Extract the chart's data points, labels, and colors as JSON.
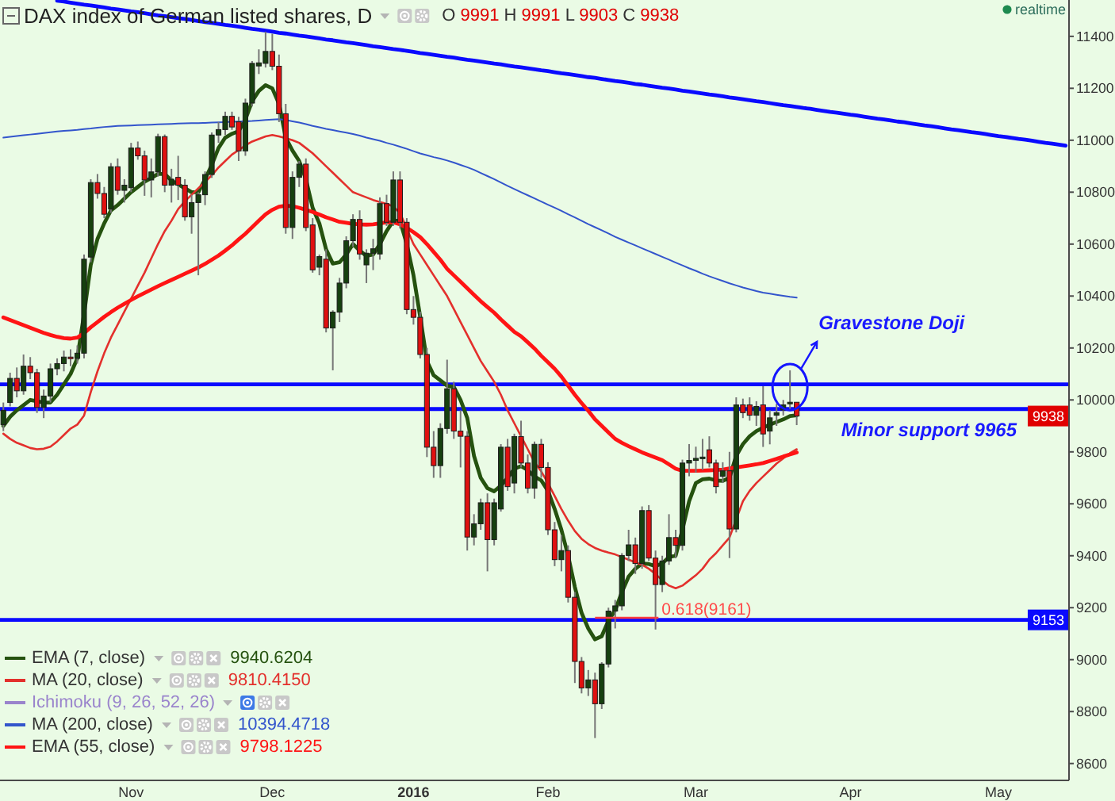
{
  "chart_data": {
    "type": "candlestick",
    "title": "DAX index of German listed shares, D",
    "categories": [
      null,
      null,
      null,
      null,
      null,
      null,
      null,
      null,
      null,
      null,
      null,
      null,
      null,
      null,
      null,
      null,
      null,
      null,
      null,
      "Nov",
      null,
      null,
      null,
      null,
      null,
      null,
      null,
      null,
      null,
      null,
      null,
      null,
      null,
      null,
      null,
      null,
      null,
      null,
      null,
      null,
      "Dec",
      null,
      null,
      null,
      null,
      null,
      null,
      null,
      null,
      null,
      null,
      null,
      null,
      null,
      null,
      null,
      null,
      null,
      null,
      null,
      null,
      "2016",
      null,
      null,
      null,
      null,
      null,
      null,
      null,
      null,
      null,
      null,
      null,
      null,
      null,
      null,
      null,
      null,
      null,
      null,
      null,
      "Feb",
      null,
      null,
      null,
      null,
      null,
      null,
      null,
      null,
      null,
      null,
      null,
      null,
      null,
      null,
      null,
      null,
      null,
      null,
      null,
      null,
      null,
      "Mar",
      null,
      null,
      null,
      null,
      null,
      null,
      null,
      null,
      null,
      null,
      null,
      null,
      null,
      null,
      null,
      null,
      null,
      null,
      null,
      null,
      null,
      null,
      "Apr",
      null,
      null,
      null,
      null,
      null,
      null,
      null,
      null,
      null,
      null,
      null,
      null,
      null,
      null,
      null,
      null,
      null,
      null,
      null,
      null,
      null,
      "May",
      null,
      null,
      null,
      null,
      null,
      null,
      null,
      null,
      null,
      null
    ],
    "ohlc": [
      [
        9905,
        9990,
        9880,
        9960
      ],
      [
        9990,
        10105,
        9975,
        10083
      ],
      [
        10083,
        10125,
        10010,
        10035
      ],
      [
        10035,
        10175,
        10020,
        10130
      ],
      [
        10130,
        10165,
        10080,
        10105
      ],
      [
        10105,
        10120,
        9950,
        9971
      ],
      [
        9971,
        10040,
        9930,
        10015
      ],
      [
        10015,
        10140,
        9990,
        10120
      ],
      [
        10120,
        10160,
        10095,
        10140
      ],
      [
        10140,
        10190,
        10110,
        10165
      ],
      [
        10165,
        10195,
        10130,
        10160
      ],
      [
        10160,
        10210,
        10140,
        10180
      ],
      [
        10180,
        10560,
        10160,
        10542
      ],
      [
        10550,
        10850,
        10530,
        10837
      ],
      [
        10837,
        10870,
        10775,
        10795
      ],
      [
        10795,
        10820,
        10700,
        10715
      ],
      [
        10735,
        10912,
        10720,
        10898
      ],
      [
        10898,
        10930,
        10790,
        10807
      ],
      [
        10807,
        10850,
        10760,
        10827
      ],
      [
        10817,
        10990,
        10800,
        10970
      ],
      [
        10970,
        10995,
        10925,
        10940
      ],
      [
        10940,
        10960,
        10786,
        10847
      ],
      [
        10847,
        10930,
        10780,
        10878
      ],
      [
        10878,
        11025,
        10860,
        11014
      ],
      [
        11014,
        11022,
        10800,
        10827
      ],
      [
        10827,
        10890,
        10760,
        10850
      ],
      [
        10857,
        10940,
        10770,
        10827
      ],
      [
        10827,
        10850,
        10690,
        10705
      ],
      [
        10705,
        10790,
        10640,
        10760
      ],
      [
        10760,
        10800,
        10480,
        10790
      ],
      [
        10790,
        10880,
        10750,
        10868
      ],
      [
        10868,
        11030,
        10855,
        11020
      ],
      [
        11020,
        11070,
        10990,
        11041
      ],
      [
        11041,
        11110,
        11020,
        11092
      ],
      [
        11092,
        11110,
        11040,
        11051
      ],
      [
        11071,
        11090,
        10920,
        10959
      ],
      [
        10959,
        11160,
        10940,
        11143
      ],
      [
        11143,
        11305,
        11130,
        11296
      ],
      [
        11286,
        11350,
        11255,
        11298
      ],
      [
        11296,
        11418,
        11280,
        11342
      ],
      [
        11342,
        11410,
        11270,
        11285
      ],
      [
        11285,
        11330,
        11070,
        11102
      ],
      [
        11102,
        11140,
        10640,
        10664
      ],
      [
        10664,
        10880,
        10620,
        10857
      ],
      [
        10857,
        10920,
        10820,
        10908
      ],
      [
        10908,
        10930,
        10650,
        10664
      ],
      [
        10674,
        10700,
        10490,
        10501
      ],
      [
        10511,
        10560,
        10480,
        10552
      ],
      [
        10542,
        10580,
        10260,
        10277
      ],
      [
        10277,
        10345,
        10114,
        10338
      ],
      [
        10338,
        10470,
        10300,
        10450
      ],
      [
        10450,
        10630,
        10430,
        10613
      ],
      [
        10613,
        10715,
        10590,
        10695
      ],
      [
        10695,
        10730,
        10540,
        10562
      ],
      [
        10520,
        10580,
        10450,
        10565
      ],
      [
        10565,
        10620,
        10500,
        10582
      ],
      [
        10562,
        10780,
        10540,
        10756
      ],
      [
        10756,
        10790,
        10670,
        10684
      ],
      [
        10684,
        10880,
        10670,
        10847
      ],
      [
        10847,
        10880,
        10660,
        10684
      ],
      [
        10684,
        10700,
        10330,
        10348
      ],
      [
        10348,
        10400,
        10290,
        10318
      ],
      [
        10318,
        10340,
        10160,
        10175
      ],
      [
        10175,
        10200,
        9780,
        9818
      ],
      [
        9818,
        9880,
        9700,
        9747
      ],
      [
        9747,
        9910,
        9700,
        9890
      ],
      [
        9890,
        10155,
        9870,
        10043
      ],
      [
        10043,
        10070,
        9850,
        9880
      ],
      [
        9880,
        9960,
        9740,
        9860
      ],
      [
        9860,
        9880,
        9420,
        9472
      ],
      [
        9472,
        9560,
        9440,
        9523
      ],
      [
        9523,
        9620,
        9500,
        9604
      ],
      [
        9604,
        9640,
        9340,
        9462
      ],
      [
        9462,
        9620,
        9440,
        9604
      ],
      [
        9580,
        9830,
        9570,
        9818
      ],
      [
        9818,
        9850,
        9650,
        9666
      ],
      [
        9680,
        9870,
        9640,
        9859
      ],
      [
        9859,
        9920,
        9740,
        9757
      ],
      [
        9757,
        9790,
        9640,
        9660
      ],
      [
        9660,
        9840,
        9620,
        9829
      ],
      [
        9829,
        9850,
        9700,
        9740
      ],
      [
        9740,
        9760,
        9480,
        9500
      ],
      [
        9500,
        9530,
        9360,
        9385
      ],
      [
        9385,
        9480,
        9340,
        9420
      ],
      [
        9420,
        9440,
        9220,
        9240
      ],
      [
        9240,
        9260,
        8910,
        8993
      ],
      [
        8993,
        9010,
        8870,
        8891
      ],
      [
        8891,
        8960,
        8860,
        8922
      ],
      [
        8922,
        8950,
        8698,
        8830
      ],
      [
        8830,
        8990,
        8810,
        8983
      ],
      [
        8983,
        9200,
        8970,
        9187
      ],
      [
        9187,
        9230,
        9120,
        9207
      ],
      [
        9207,
        9410,
        9190,
        9401
      ],
      [
        9401,
        9500,
        9380,
        9442
      ],
      [
        9442,
        9470,
        9330,
        9370
      ],
      [
        9370,
        9590,
        9350,
        9574
      ],
      [
        9574,
        9595,
        9380,
        9391
      ],
      [
        9391,
        9420,
        9116,
        9289
      ],
      [
        9289,
        9400,
        9260,
        9380
      ],
      [
        9380,
        9560,
        9365,
        9470
      ],
      [
        9470,
        9500,
        9390,
        9440
      ],
      [
        9440,
        9770,
        9420,
        9757
      ],
      [
        9757,
        9830,
        9706,
        9767
      ],
      [
        9767,
        9820,
        9720,
        9775
      ],
      [
        9775,
        9850,
        9730,
        9780
      ],
      [
        9808,
        9860,
        9740,
        9757
      ],
      [
        9757,
        9770,
        9640,
        9666
      ],
      [
        9706,
        9760,
        9680,
        9727
      ],
      [
        9727,
        9800,
        9391,
        9503
      ],
      [
        9503,
        10010,
        9490,
        9981
      ],
      [
        9981,
        10005,
        9930,
        9951
      ],
      [
        9981,
        10010,
        9920,
        9941
      ],
      [
        9941,
        9995,
        9900,
        9975
      ],
      [
        9981,
        10053,
        9819,
        9869
      ],
      [
        9880,
        9960,
        9829,
        9931
      ],
      [
        9941,
        9985,
        9900,
        9951
      ],
      [
        9961,
        10000,
        9940,
        9981
      ],
      [
        9985,
        10114,
        9965,
        9991
      ],
      [
        9991,
        9991,
        9903,
        9938
      ],
      null,
      null,
      null,
      null,
      null,
      null,
      null,
      null,
      null,
      null,
      null,
      null,
      null,
      null,
      null,
      null,
      null,
      null,
      null,
      null,
      null,
      null,
      null,
      null,
      null,
      null,
      null,
      null,
      null,
      null,
      null,
      null,
      null,
      null,
      null,
      null,
      null,
      null,
      null,
      null
    ],
    "series": [
      {
        "name": "EMA (7, close)",
        "type": "line",
        "color": "#25520f",
        "values": [
          9900,
          9935,
          9960,
          9980,
          10000,
          9995,
          9990,
          9990,
          10020,
          10060,
          10100,
          10160,
          10330,
          10520,
          10620,
          10680,
          10730,
          10750,
          10775,
          10800,
          10820,
          10840,
          10855,
          10870,
          10870,
          10845,
          10830,
          10815,
          10800,
          10800,
          10850,
          10905,
          10970,
          11010,
          11025,
          11035,
          11080,
          11150,
          11190,
          11212,
          11200,
          11140,
          11010,
          10960,
          10920,
          10850,
          10740,
          10680,
          10580,
          10525,
          10530,
          10560,
          10600,
          10575,
          10555,
          10560,
          10600,
          10650,
          10690,
          10690,
          10600,
          10480,
          10320,
          10150,
          10095,
          10075,
          10055,
          10050,
          10000,
          9930,
          9785,
          9700,
          9660,
          9648,
          9670,
          9700,
          9735,
          9745,
          9730,
          9705,
          9690,
          9650,
          9580,
          9500,
          9400,
          9280,
          9180,
          9120,
          9078,
          9090,
          9150,
          9190,
          9260,
          9320,
          9350,
          9370,
          9368,
          9360,
          9370,
          9395,
          9400,
          9500,
          9610,
          9680,
          9694,
          9697,
          9690,
          9688,
          9700,
          9785,
          9830,
          9860,
          9880,
          9893,
          9905,
          9915,
          9925,
          9938,
          9941,
          null,
          null,
          null,
          null,
          null,
          null,
          null,
          null,
          null,
          null,
          null,
          null,
          null,
          null,
          null,
          null,
          null,
          null,
          null,
          null,
          null,
          null,
          null,
          null,
          null,
          null,
          null,
          null,
          null,
          null,
          null,
          null,
          null,
          null,
          null,
          null,
          null,
          null,
          null,
          null
        ]
      },
      {
        "name": "MA (20, close)",
        "type": "line",
        "color": "#e3302c",
        "values": [
          9870,
          9850,
          9835,
          9825,
          9815,
          9810,
          9812,
          9820,
          9840,
          9865,
          9890,
          9905,
          9940,
          10030,
          10110,
          10180,
          10240,
          10290,
          10340,
          10390,
          10440,
          10490,
          10545,
          10600,
          10650,
          10690,
          10735,
          10765,
          10790,
          10815,
          10840,
          10865,
          10895,
          10920,
          10945,
          10962,
          10980,
          10995,
          11005,
          11015,
          11020,
          11015,
          11008,
          11000,
          10990,
          10970,
          10950,
          10925,
          10900,
          10875,
          10850,
          10825,
          10800,
          10790,
          10780,
          10770,
          10762,
          10755,
          10745,
          10720,
          10660,
          10600,
          10560,
          10520,
          10480,
          10440,
          10400,
          10350,
          10300,
          10250,
          10200,
          10150,
          10110,
          10070,
          10020,
          9960,
          9910,
          9860,
          9810,
          9760,
          9725,
          9680,
          9630,
          9580,
          9535,
          9495,
          9465,
          9445,
          9430,
          9420,
          9412,
          9405,
          9395,
          9385,
          9375,
          9365,
          9350,
          9330,
          9305,
          9285,
          9275,
          9285,
          9305,
          9325,
          9350,
          9385,
          9410,
          9440,
          9470,
          9540,
          9610,
          9650,
          9680,
          9705,
          9730,
          9755,
          9775,
          9795,
          9810,
          null,
          null,
          null,
          null,
          null,
          null,
          null,
          null,
          null,
          null,
          null,
          null,
          null,
          null,
          null,
          null,
          null,
          null,
          null,
          null,
          null,
          null,
          null,
          null,
          null,
          null,
          null,
          null,
          null,
          null,
          null,
          null,
          null,
          null,
          null,
          null,
          null,
          null,
          null,
          null
        ]
      },
      {
        "name": "Ichimoku (9, 26, 52, 26)",
        "type": "line",
        "color": "#9a84cc",
        "values": [
          null,
          null,
          null,
          null,
          null,
          null,
          null,
          null,
          null,
          null,
          null,
          null,
          null,
          null,
          null,
          null,
          null,
          null,
          null,
          null,
          null,
          null,
          null,
          null,
          null,
          null,
          null,
          null,
          null,
          null,
          null,
          null,
          null,
          null,
          null,
          null,
          null,
          null,
          null,
          null,
          null,
          null,
          null,
          null,
          null,
          null,
          null,
          null,
          null,
          null,
          null,
          null,
          null,
          null,
          null,
          null,
          null,
          null,
          null,
          null,
          null,
          null,
          null,
          null,
          null,
          null,
          null,
          null,
          null,
          null,
          null,
          null,
          null,
          null,
          null,
          null,
          null,
          null,
          null,
          null,
          null,
          null,
          null,
          null,
          null,
          null,
          null,
          null,
          null,
          null,
          null,
          null,
          null,
          null,
          null,
          null,
          null,
          null,
          null,
          null,
          null,
          null,
          null,
          null,
          null,
          null,
          null,
          null,
          null,
          null,
          null,
          null,
          null,
          null,
          null,
          null,
          null,
          null,
          null,
          null,
          null,
          null,
          null,
          null,
          null,
          null,
          null,
          null,
          null,
          null,
          null,
          null,
          null,
          null,
          null,
          null,
          null,
          null,
          null,
          null,
          null,
          null,
          null,
          null,
          null,
          null,
          null,
          null,
          null,
          null,
          null,
          null,
          null,
          null,
          null,
          null,
          null,
          null,
          null
        ]
      },
      {
        "name": "MA (200, close)",
        "type": "line",
        "color": "#3355cc",
        "values": [
          11010,
          11013,
          11016,
          11019,
          11022,
          11025,
          11028,
          11031,
          11034,
          11036,
          11038,
          11040,
          11043,
          11045,
          11048,
          11051,
          11053,
          11055,
          11056,
          11057,
          11058,
          11059,
          11060,
          11061,
          11062,
          11063,
          11064,
          11065,
          11066,
          11066,
          11067,
          11068,
          11069,
          11070,
          11071,
          11072,
          11073,
          11074,
          11076,
          11078,
          11080,
          11081,
          11078,
          11073,
          11068,
          11062,
          11055,
          11050,
          11044,
          11039,
          11034,
          11029,
          11024,
          11018,
          11010,
          11004,
          10998,
          10990,
          10983,
          10975,
          10967,
          10958,
          10949,
          10942,
          10935,
          10929,
          10922,
          10914,
          10905,
          10896,
          10886,
          10874,
          10862,
          10850,
          10837,
          10824,
          10812,
          10800,
          10788,
          10776,
          10764,
          10752,
          10740,
          10728,
          10715,
          10703,
          10690,
          10677,
          10665,
          10653,
          10641,
          10628,
          10617,
          10606,
          10595,
          10584,
          10573,
          10562,
          10551,
          10540,
          10529,
          10518,
          10507,
          10497,
          10486,
          10476,
          10467,
          10458,
          10449,
          10441,
          10433,
          10426,
          10419,
          10413,
          10409,
          10405,
          10401,
          10397,
          10394,
          null,
          null,
          null,
          null,
          null,
          null,
          null,
          null,
          null,
          null,
          null,
          null,
          null,
          null,
          null,
          null,
          null,
          null,
          null,
          null,
          null,
          null,
          null,
          null,
          null,
          null,
          null,
          null,
          null,
          null,
          null,
          null,
          null,
          null,
          null,
          null,
          null,
          null,
          null,
          null
        ]
      },
      {
        "name": "EMA (55, close)",
        "type": "line",
        "color": "#ff1414",
        "values": [
          10318,
          10308,
          10298,
          10288,
          10278,
          10268,
          10258,
          10250,
          10243,
          10238,
          10236,
          10240,
          10257,
          10280,
          10300,
          10320,
          10338,
          10355,
          10370,
          10385,
          10399,
          10412,
          10425,
          10438,
          10450,
          10462,
          10474,
          10486,
          10498,
          10510,
          10524,
          10540,
          10556,
          10575,
          10595,
          10618,
          10640,
          10665,
          10690,
          10715,
          10732,
          10744,
          10748,
          10746,
          10740,
          10732,
          10724,
          10714,
          10703,
          10695,
          10686,
          10682,
          10678,
          10676,
          10675,
          10676,
          10680,
          10684,
          10684,
          10676,
          10663,
          10646,
          10627,
          10600,
          10570,
          10540,
          10505,
          10480,
          10455,
          10430,
          10405,
          10380,
          10358,
          10336,
          10310,
          10286,
          10262,
          10245,
          10222,
          10198,
          10170,
          10145,
          10120,
          10090,
          10055,
          10020,
          9988,
          9958,
          9925,
          9900,
          9875,
          9850,
          9835,
          9822,
          9810,
          9798,
          9788,
          9778,
          9768,
          9752,
          9735,
          9727,
          9727,
          9727,
          9728,
          9729,
          9730,
          9732,
          9736,
          9740,
          9744,
          9748,
          9752,
          9757,
          9765,
          9773,
          9782,
          9790,
          9798,
          null,
          null,
          null,
          null,
          null,
          null,
          null,
          null,
          null,
          null,
          null,
          null,
          null,
          null,
          null,
          null,
          null,
          null,
          null,
          null,
          null,
          null,
          null,
          null,
          null,
          null,
          null,
          null,
          null,
          null,
          null,
          null,
          null,
          null,
          null,
          null,
          null,
          null,
          null,
          null
        ]
      },
      {
        "type": "line",
        "color": "#0a0aff",
        "values": [
          null,
          null,
          null,
          null,
          null,
          null,
          null,
          null,
          11537,
          11534,
          11530,
          11526,
          11522,
          11519,
          11515,
          11511,
          11507,
          11504,
          11500,
          11496,
          11493,
          11489,
          11485,
          11481,
          11478,
          11474,
          11470,
          11467,
          11463,
          11459,
          11455,
          11452,
          11448,
          11444,
          11441,
          11437,
          11433,
          11429,
          11426,
          11422,
          11418,
          11414,
          11411,
          11407,
          11403,
          11400,
          11396,
          11392,
          11388,
          11385,
          11381,
          11377,
          11374,
          11370,
          11366,
          11362,
          11359,
          11355,
          11351,
          11348,
          11344,
          11340,
          11336,
          11333,
          11329,
          11325,
          11321,
          11318,
          11314,
          11310,
          11307,
          11303,
          11299,
          11295,
          11292,
          11288,
          11284,
          11281,
          11277,
          11273,
          11269,
          11266,
          11262,
          11258,
          11255,
          11251,
          11247,
          11243,
          11240,
          11236,
          11232,
          11228,
          11225,
          11221,
          11217,
          11214,
          11210,
          11206,
          11202,
          11199,
          11195,
          11191,
          11188,
          11184,
          11180,
          11176,
          11173,
          11169,
          11165,
          11162,
          11158,
          11154,
          11150,
          11147,
          11143,
          11139,
          11135,
          11132,
          11128,
          11124,
          11121,
          11117,
          11113,
          11109,
          11106,
          11102,
          11098,
          11095,
          11091,
          11087,
          11083,
          11080,
          11076,
          11072,
          11069,
          11065,
          11061,
          11057,
          11054,
          11050,
          11046,
          11042,
          11039,
          11035,
          11031,
          11028,
          11024,
          11020,
          11016,
          11013,
          11009,
          11005,
          11002,
          10998,
          10994,
          10990,
          10987,
          10983,
          10979
        ]
      }
    ],
    "ylim": [
      8535,
      11540
    ],
    "yticks": [
      8600,
      8800,
      9000,
      9200,
      9400,
      9600,
      9800,
      10000,
      10200,
      10400,
      10600,
      10800,
      11000,
      11200,
      11400
    ],
    "ref_lines": [
      {
        "axis": "y",
        "value": 10060,
        "color": "#0a0aff"
      },
      {
        "axis": "y",
        "value": 9965,
        "color": "#0a0aff"
      },
      {
        "axis": "y",
        "value": 9153,
        "label": "9153",
        "color": "#0a0aff"
      }
    ],
    "annotations": [
      "Gravestone Doji",
      {
        "text": "Minor support 9965",
        "y": 9965
      },
      {
        "text": "0.618(9161)",
        "y": 9161
      },
      {
        "text": "9938",
        "y": 9938
      },
      "O 9991 H 9991 L 9903 C 9938",
      "realtime",
      "9940.6204",
      "9810.4150",
      "10394.4718",
      "9798.1225"
    ],
    "legend": "bottom left"
  }
}
